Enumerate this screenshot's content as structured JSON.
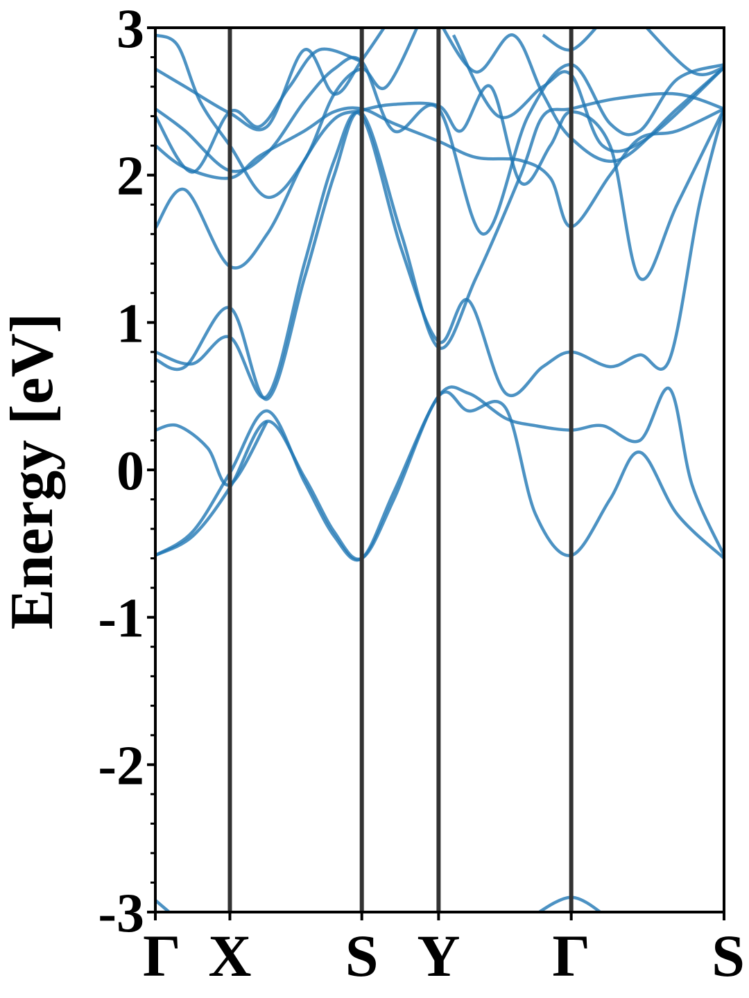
{
  "chart_data": {
    "type": "line",
    "title": "",
    "xlabel": "",
    "ylabel": "Energy [eV]",
    "ylim": [
      -3,
      3
    ],
    "yticks": [
      -3,
      -2,
      -1,
      0,
      1,
      2,
      3
    ],
    "kpath": [
      {
        "label": "Γ",
        "pos": 0.0
      },
      {
        "label": "X",
        "pos": 1.0
      },
      {
        "label": "S",
        "pos": 2.77
      },
      {
        "label": "Y",
        "pos": 3.8
      },
      {
        "label": "Γ",
        "pos": 5.58
      },
      {
        "label": "S",
        "pos": 7.63
      }
    ],
    "xlim": [
      0,
      7.63
    ],
    "grid": false,
    "line_color": "#1f77b4",
    "vline_color": "#333333",
    "series": [
      {
        "values": [
          [
            0,
            -0.58
          ],
          [
            0.5,
            -0.45
          ],
          [
            1.0,
            -0.12
          ],
          [
            1.5,
            0.33
          ],
          [
            2.0,
            -0.05
          ],
          [
            2.4,
            -0.42
          ],
          [
            2.77,
            -0.6
          ],
          [
            3.2,
            -0.2
          ],
          [
            3.8,
            0.5
          ],
          [
            4.2,
            0.4
          ],
          [
            4.7,
            0.42
          ],
          [
            5.1,
            -0.3
          ],
          [
            5.58,
            -0.58
          ],
          [
            6.1,
            -0.2
          ],
          [
            6.5,
            0.12
          ],
          [
            7.0,
            -0.3
          ],
          [
            7.63,
            -0.6
          ]
        ]
      },
      {
        "values": [
          [
            0,
            -0.58
          ],
          [
            0.5,
            -0.42
          ],
          [
            1.0,
            -0.02
          ],
          [
            1.5,
            0.4
          ],
          [
            2.0,
            -0.08
          ],
          [
            2.4,
            -0.45
          ],
          [
            2.77,
            -0.6
          ],
          [
            3.2,
            -0.15
          ],
          [
            3.8,
            0.5
          ],
          [
            4.2,
            0.52
          ],
          [
            4.7,
            0.35
          ],
          [
            5.1,
            0.3
          ],
          [
            5.58,
            0.27
          ],
          [
            6.0,
            0.3
          ],
          [
            6.5,
            0.2
          ],
          [
            6.9,
            0.55
          ],
          [
            7.2,
            -0.1
          ],
          [
            7.63,
            -0.58
          ]
        ]
      },
      {
        "values": [
          [
            0,
            0.27
          ],
          [
            0.3,
            0.3
          ],
          [
            0.7,
            0.15
          ],
          [
            1.0,
            -0.1
          ],
          [
            1.5,
            0.33
          ]
        ]
      },
      {
        "values": [
          [
            0,
            0.8
          ],
          [
            0.5,
            0.72
          ],
          [
            1.0,
            0.9
          ],
          [
            1.5,
            0.5
          ],
          [
            2.0,
            1.4
          ],
          [
            2.4,
            2.1
          ],
          [
            2.77,
            2.4
          ],
          [
            3.3,
            1.5
          ],
          [
            3.8,
            0.87
          ],
          [
            4.2,
            1.15
          ],
          [
            4.7,
            0.52
          ],
          [
            5.2,
            0.7
          ],
          [
            5.58,
            0.8
          ],
          [
            6.1,
            0.7
          ],
          [
            6.5,
            0.78
          ],
          [
            6.9,
            0.75
          ],
          [
            7.3,
            1.8
          ],
          [
            7.63,
            2.45
          ]
        ]
      },
      {
        "values": [
          [
            0,
            0.75
          ],
          [
            0.4,
            0.7
          ],
          [
            1.0,
            1.1
          ],
          [
            1.5,
            0.48
          ],
          [
            2.0,
            1.3
          ],
          [
            2.4,
            2.0
          ],
          [
            2.77,
            2.42
          ],
          [
            3.3,
            1.6
          ],
          [
            3.8,
            0.83
          ],
          [
            4.3,
            1.3
          ],
          [
            4.9,
            2.0
          ],
          [
            5.2,
            2.4
          ],
          [
            5.58,
            2.45
          ],
          [
            6.2,
            2.52
          ],
          [
            7.0,
            2.55
          ],
          [
            7.63,
            2.45
          ]
        ]
      },
      {
        "values": [
          [
            0,
            1.64
          ],
          [
            0.4,
            1.9
          ],
          [
            1.0,
            1.38
          ],
          [
            1.5,
            1.6
          ],
          [
            2.0,
            2.1
          ],
          [
            2.4,
            2.38
          ],
          [
            2.77,
            2.44
          ],
          [
            3.2,
            2.48
          ],
          [
            3.8,
            2.47
          ],
          [
            4.1,
            2.3
          ],
          [
            4.5,
            2.6
          ],
          [
            4.9,
            1.95
          ],
          [
            5.3,
            2.2
          ],
          [
            5.58,
            2.43
          ],
          [
            6.1,
            2.2
          ],
          [
            6.5,
            1.3
          ],
          [
            7.0,
            1.8
          ],
          [
            7.63,
            2.45
          ]
        ]
      },
      {
        "values": [
          [
            0,
            2.2
          ],
          [
            0.4,
            2.05
          ],
          [
            1.0,
            1.98
          ],
          [
            1.4,
            2.13
          ],
          [
            2.0,
            2.3
          ],
          [
            2.4,
            2.43
          ],
          [
            2.77,
            2.45
          ],
          [
            3.2,
            2.35
          ],
          [
            3.8,
            2.23
          ],
          [
            4.3,
            2.12
          ],
          [
            4.9,
            2.1
          ],
          [
            5.3,
            1.98
          ],
          [
            5.58,
            1.65
          ],
          [
            6.1,
            2.0
          ],
          [
            6.5,
            2.25
          ],
          [
            7.0,
            2.3
          ],
          [
            7.63,
            2.45
          ]
        ]
      },
      {
        "values": [
          [
            0,
            2.45
          ],
          [
            0.4,
            2.3
          ],
          [
            1.0,
            2.03
          ],
          [
            1.5,
            2.15
          ],
          [
            2.0,
            2.5
          ],
          [
            2.4,
            2.72
          ],
          [
            2.77,
            2.77
          ],
          [
            3.2,
            2.3
          ],
          [
            3.8,
            2.45
          ],
          [
            4.4,
            1.6
          ],
          [
            5.0,
            2.4
          ],
          [
            5.58,
            2.75
          ],
          [
            6.1,
            2.35
          ],
          [
            6.5,
            2.3
          ],
          [
            7.0,
            2.65
          ],
          [
            7.63,
            2.75
          ]
        ]
      },
      {
        "values": [
          [
            0,
            2.72
          ],
          [
            0.4,
            2.6
          ],
          [
            1.0,
            2.42
          ],
          [
            1.5,
            2.33
          ],
          [
            2.0,
            2.85
          ],
          [
            2.4,
            2.55
          ],
          [
            2.77,
            2.78
          ],
          [
            3.2,
            3.1
          ]
        ]
      },
      {
        "values": [
          [
            0,
            2.95
          ],
          [
            0.3,
            2.88
          ],
          [
            0.6,
            2.5
          ],
          [
            1.0,
            2.2
          ],
          [
            1.5,
            1.85
          ],
          [
            2.0,
            2.1
          ],
          [
            2.4,
            2.55
          ],
          [
            2.77,
            2.72
          ],
          [
            3.1,
            2.6
          ],
          [
            3.6,
            3.1
          ]
        ]
      },
      {
        "values": [
          [
            3.8,
            3.05
          ],
          [
            4.3,
            2.7
          ],
          [
            4.8,
            2.95
          ],
          [
            5.2,
            2.55
          ],
          [
            5.58,
            2.25
          ],
          [
            6.2,
            2.1
          ],
          [
            7.0,
            2.45
          ],
          [
            7.63,
            2.73
          ]
        ]
      },
      {
        "values": [
          [
            4.0,
            2.95
          ],
          [
            4.6,
            2.4
          ],
          [
            5.2,
            2.6
          ],
          [
            5.58,
            2.68
          ],
          [
            6.0,
            2.2
          ],
          [
            6.6,
            2.25
          ],
          [
            7.63,
            2.73
          ]
        ]
      },
      {
        "values": [
          [
            0,
            2.4
          ],
          [
            0.5,
            2.02
          ],
          [
            1.0,
            2.43
          ],
          [
            1.4,
            2.33
          ],
          [
            1.8,
            2.6
          ],
          [
            2.2,
            2.85
          ],
          [
            2.77,
            2.77
          ]
        ]
      },
      {
        "values": [
          [
            5.2,
            2.95
          ],
          [
            5.58,
            2.85
          ],
          [
            6.0,
            3.05
          ]
        ]
      },
      {
        "values": [
          [
            6.5,
            3.05
          ],
          [
            7.2,
            2.7
          ],
          [
            7.63,
            2.73
          ]
        ]
      },
      {
        "values": [
          [
            0,
            -2.92
          ],
          [
            0.3,
            -3.05
          ]
        ]
      },
      {
        "values": [
          [
            5.0,
            -3.05
          ],
          [
            5.58,
            -2.9
          ],
          [
            6.1,
            -3.05
          ]
        ]
      }
    ]
  }
}
